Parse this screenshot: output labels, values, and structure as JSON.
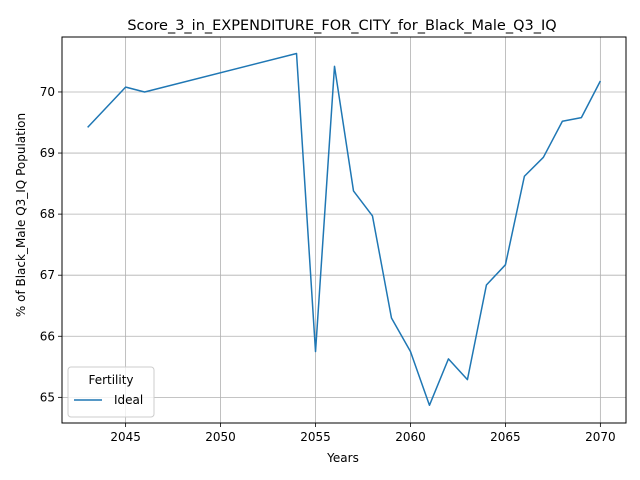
{
  "chart_data": {
    "type": "line",
    "title": "Score_3_in_EXPENDITURE_FOR_CITY_for_Black_Male_Q3_IQ",
    "xlabel": "Years",
    "ylabel": "% of Black_Male Q3_IQ Population",
    "xlim": [
      2041.65,
      2071.35
    ],
    "ylim": [
      64.58,
      70.9
    ],
    "xticks": [
      2045,
      2050,
      2055,
      2060,
      2065,
      2070
    ],
    "yticks": [
      65,
      66,
      67,
      68,
      69,
      70
    ],
    "grid": true,
    "legend": {
      "title": "Fertility",
      "placement": "lower-left"
    },
    "series": [
      {
        "name": "Ideal",
        "color": "#1f77b4",
        "x": [
          2043,
          2045,
          2046,
          2054,
          2055,
          2056,
          2057,
          2058,
          2059,
          2060,
          2061,
          2062,
          2063,
          2064,
          2065,
          2066,
          2067,
          2068,
          2069,
          2070
        ],
        "y": [
          69.42,
          70.08,
          70.0,
          70.63,
          65.75,
          70.42,
          68.38,
          67.97,
          66.3,
          65.75,
          64.87,
          65.63,
          65.29,
          66.84,
          67.17,
          68.62,
          68.93,
          69.52,
          69.58,
          70.18
        ]
      }
    ]
  }
}
